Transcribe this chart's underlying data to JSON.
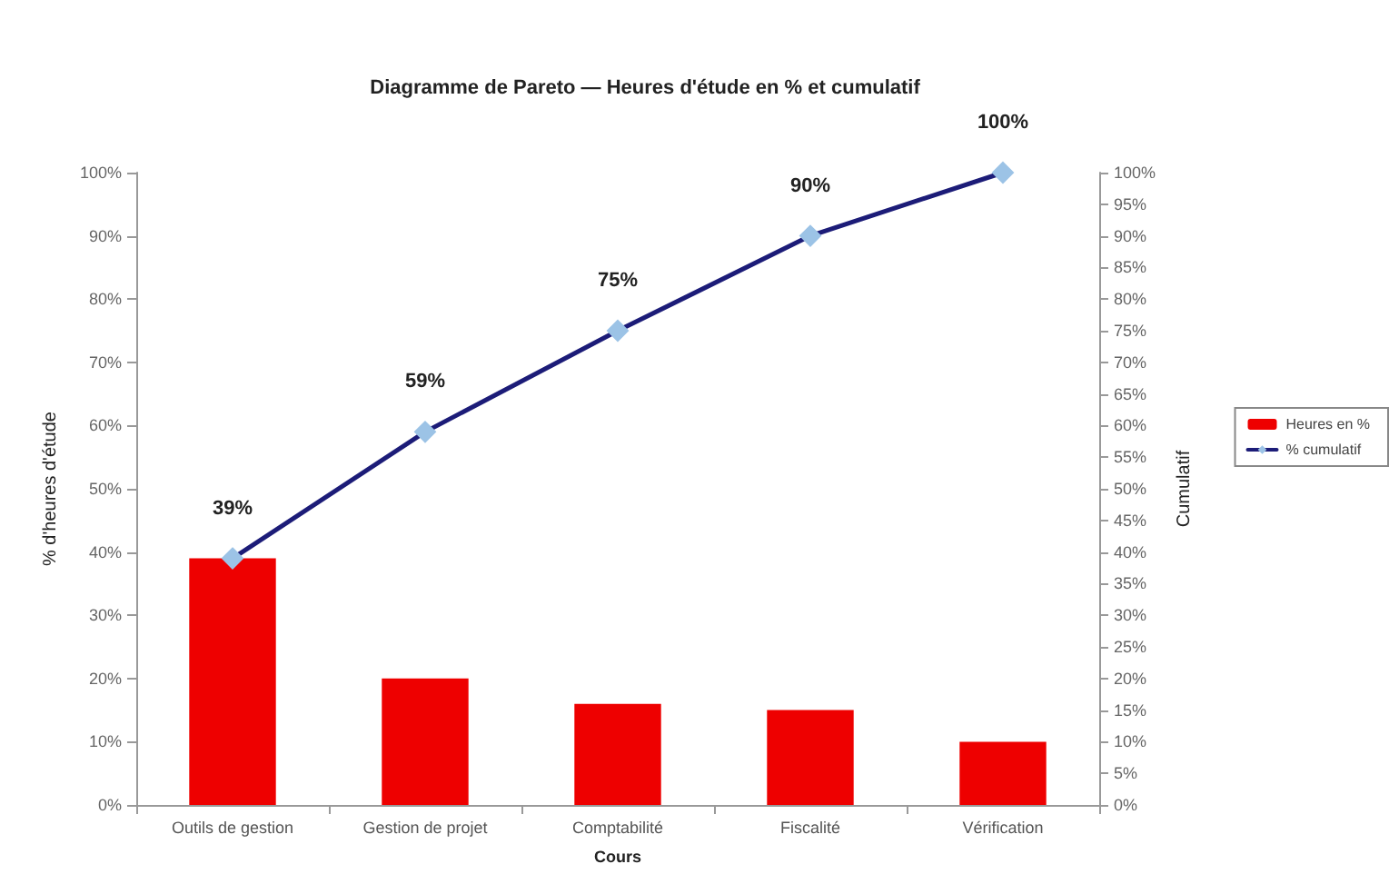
{
  "chart_data": {
    "type": "bar",
    "title": "Diagramme de Pareto — Heures d'étude en % et cumulatif",
    "xlabel": "Cours",
    "ylabel": "% d'heures d'étude",
    "y2label": "Cumulatif",
    "categories": [
      "Outils de gestion",
      "Gestion de projet",
      "Comptabilité",
      "Fiscalité",
      "Vérification"
    ],
    "series": [
      {
        "name": "Heures en %",
        "color": "#ee0000",
        "values": [
          39,
          20,
          16,
          15,
          10
        ]
      },
      {
        "name": "% cumulatif",
        "type": "line",
        "axis": "y2",
        "color": "#1c1c78",
        "marker": "diamond",
        "values": [
          39,
          59,
          75,
          90,
          100
        ],
        "value_labels": [
          "39%",
          "59%",
          "75%",
          "90%",
          "100%"
        ]
      }
    ],
    "ylim": [
      0,
      100
    ],
    "yticks": [
      {
        "value": 0,
        "label": "0%"
      },
      {
        "value": 10,
        "label": "10%"
      },
      {
        "value": 20,
        "label": "20%"
      },
      {
        "value": 30,
        "label": "30%"
      },
      {
        "value": 40,
        "label": "40%"
      },
      {
        "value": 50,
        "label": "50%"
      },
      {
        "value": 60,
        "label": "60%"
      },
      {
        "value": 70,
        "label": "70%"
      },
      {
        "value": 80,
        "label": "80%"
      },
      {
        "value": 90,
        "label": "90%"
      },
      {
        "value": 100,
        "label": "100%"
      }
    ],
    "y2lim": [
      0,
      100
    ],
    "y2ticks": [
      {
        "value": 0,
        "label": "0%"
      },
      {
        "value": 5,
        "label": "5%"
      },
      {
        "value": 10,
        "label": "10%"
      },
      {
        "value": 15,
        "label": "15%"
      },
      {
        "value": 20,
        "label": "20%"
      },
      {
        "value": 25,
        "label": "25%"
      },
      {
        "value": 30,
        "label": "30%"
      },
      {
        "value": 35,
        "label": "35%"
      },
      {
        "value": 40,
        "label": "40%"
      },
      {
        "value": 45,
        "label": "45%"
      },
      {
        "value": 50,
        "label": "50%"
      },
      {
        "value": 55,
        "label": "55%"
      },
      {
        "value": 60,
        "label": "60%"
      },
      {
        "value": 65,
        "label": "65%"
      },
      {
        "value": 70,
        "label": "70%"
      },
      {
        "value": 75,
        "label": "75%"
      },
      {
        "value": 80,
        "label": "80%"
      },
      {
        "value": 85,
        "label": "85%"
      },
      {
        "value": 90,
        "label": "90%"
      },
      {
        "value": 95,
        "label": "95%"
      },
      {
        "value": 100,
        "label": "100%"
      }
    ],
    "grid": false,
    "legend": "right"
  }
}
